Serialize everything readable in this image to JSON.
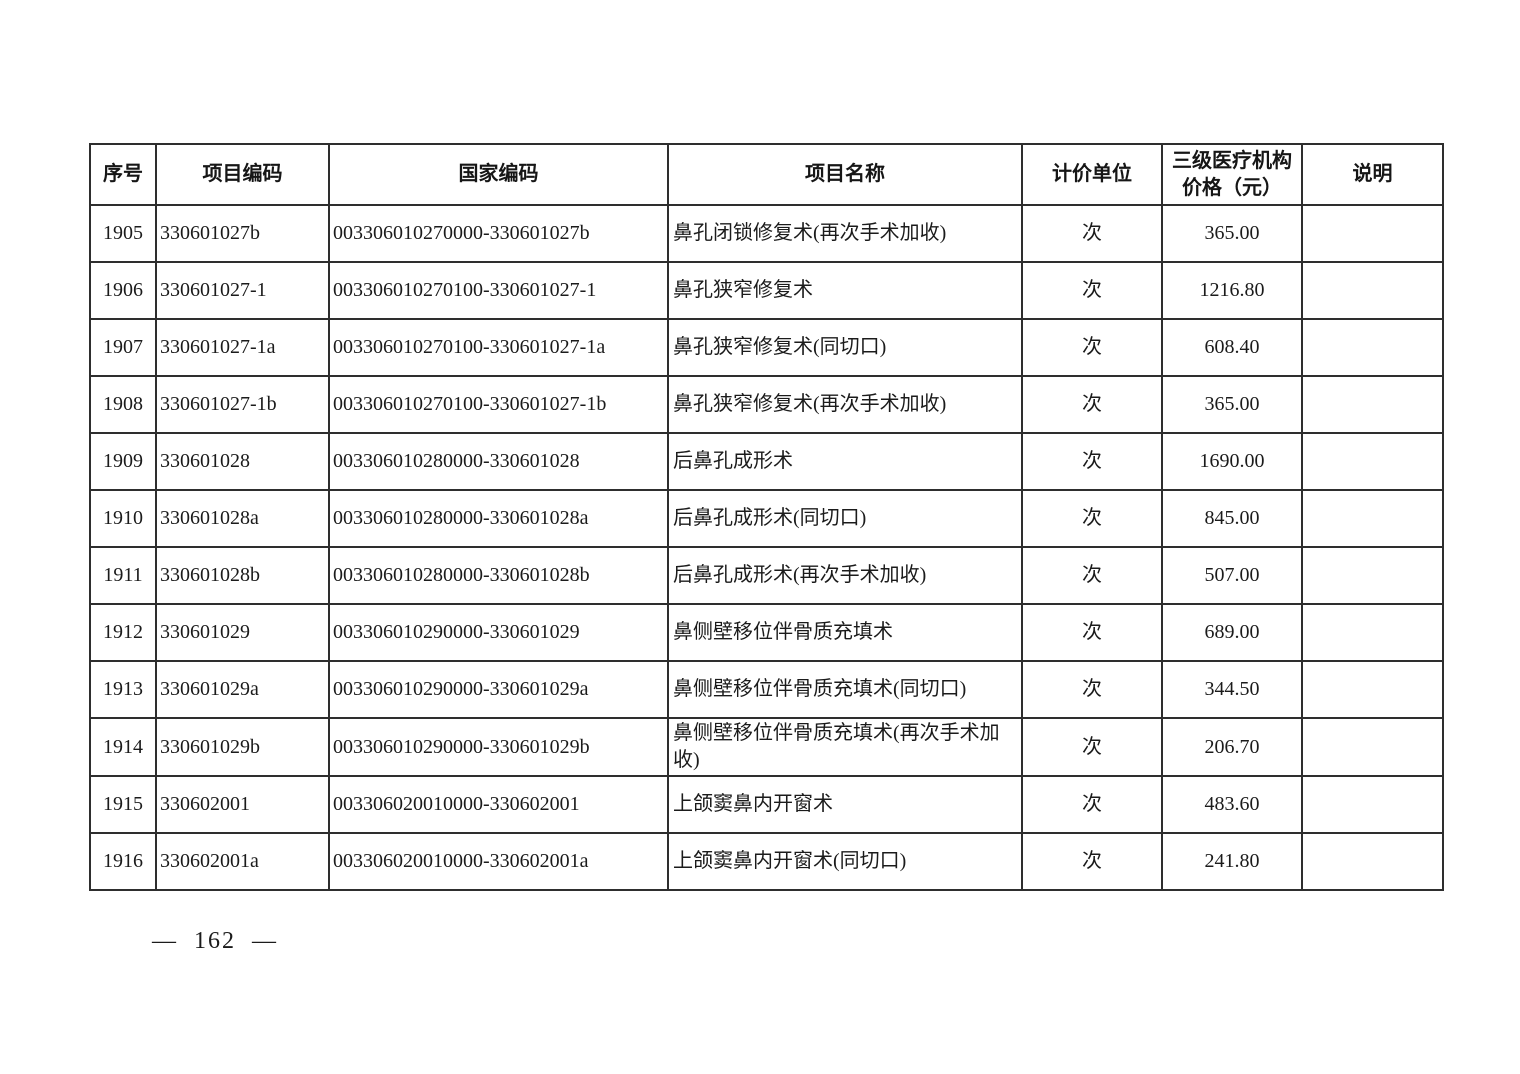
{
  "page": {
    "page_number": "— 162 —"
  },
  "table": {
    "columns": [
      {
        "key": "seq",
        "label": "序号"
      },
      {
        "key": "item_code",
        "label": "项目编码"
      },
      {
        "key": "national_code",
        "label": "国家编码"
      },
      {
        "key": "item_name",
        "label": "项目名称"
      },
      {
        "key": "unit",
        "label": "计价单位"
      },
      {
        "key": "price",
        "label": "三级医疗机构价格（元）"
      },
      {
        "key": "note",
        "label": "说明"
      }
    ],
    "rows": [
      {
        "seq": "1905",
        "item_code": "330601027b",
        "national_code": "003306010270000-330601027b",
        "item_name": "鼻孔闭锁修复术(再次手术加收)",
        "unit": "次",
        "price": "365.00",
        "note": ""
      },
      {
        "seq": "1906",
        "item_code": "330601027-1",
        "national_code": "003306010270100-330601027-1",
        "item_name": "鼻孔狭窄修复术",
        "unit": "次",
        "price": "1216.80",
        "note": ""
      },
      {
        "seq": "1907",
        "item_code": "330601027-1a",
        "national_code": "003306010270100-330601027-1a",
        "item_name": "鼻孔狭窄修复术(同切口)",
        "unit": "次",
        "price": "608.40",
        "note": ""
      },
      {
        "seq": "1908",
        "item_code": "330601027-1b",
        "national_code": "003306010270100-330601027-1b",
        "item_name": "鼻孔狭窄修复术(再次手术加收)",
        "unit": "次",
        "price": "365.00",
        "note": ""
      },
      {
        "seq": "1909",
        "item_code": "330601028",
        "national_code": "003306010280000-330601028",
        "item_name": "后鼻孔成形术",
        "unit": "次",
        "price": "1690.00",
        "note": ""
      },
      {
        "seq": "1910",
        "item_code": "330601028a",
        "national_code": "003306010280000-330601028a",
        "item_name": "后鼻孔成形术(同切口)",
        "unit": "次",
        "price": "845.00",
        "note": ""
      },
      {
        "seq": "1911",
        "item_code": "330601028b",
        "national_code": "003306010280000-330601028b",
        "item_name": "后鼻孔成形术(再次手术加收)",
        "unit": "次",
        "price": "507.00",
        "note": ""
      },
      {
        "seq": "1912",
        "item_code": "330601029",
        "national_code": "003306010290000-330601029",
        "item_name": "鼻侧壁移位伴骨质充填术",
        "unit": "次",
        "price": "689.00",
        "note": ""
      },
      {
        "seq": "1913",
        "item_code": "330601029a",
        "national_code": "003306010290000-330601029a",
        "item_name": "鼻侧壁移位伴骨质充填术(同切口)",
        "unit": "次",
        "price": "344.50",
        "note": ""
      },
      {
        "seq": "1914",
        "item_code": "330601029b",
        "national_code": "003306010290000-330601029b",
        "item_name": "鼻侧壁移位伴骨质充填术(再次手术加收)",
        "unit": "次",
        "price": "206.70",
        "note": ""
      },
      {
        "seq": "1915",
        "item_code": "330602001",
        "national_code": "003306020010000-330602001",
        "item_name": "上颌窦鼻内开窗术",
        "unit": "次",
        "price": "483.60",
        "note": ""
      },
      {
        "seq": "1916",
        "item_code": "330602001a",
        "national_code": "003306020010000-330602001a",
        "item_name": "上颌窦鼻内开窗术(同切口)",
        "unit": "次",
        "price": "241.80",
        "note": ""
      }
    ]
  }
}
